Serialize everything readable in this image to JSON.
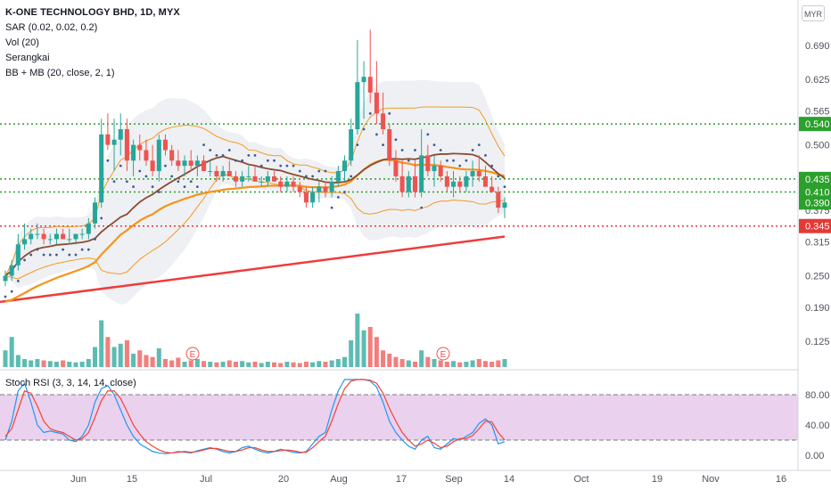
{
  "header": {
    "title": "K-ONE TECHNOLOGY BHD, 1D, MYX",
    "indicators": [
      "SAR (0.02, 0.02, 0.2)",
      "Vol (20)",
      "Serangkai",
      "BB + MB (20, close, 2, 1)"
    ],
    "currency_button": "MYR"
  },
  "rsi_pane": {
    "label": "Stoch RSI (3, 3, 14, 14, close)"
  },
  "colors": {
    "up": "#26a69a",
    "down": "#ef5350",
    "bb": "#f59a23",
    "ma_brown": "#8b4c32",
    "ma_orange": "#f7931a",
    "ma_red": "#ef3b3b",
    "sar": "#3d5a99",
    "green_level": "#2ca02c",
    "red_level": "#e53935",
    "rsi_k": "#2196f3",
    "rsi_d": "#f44336",
    "rsi_band": "#e1bee7"
  },
  "chart_data": [
    {
      "type": "candlestick",
      "title": "K-ONE TECHNOLOGY BHD, 1D, MYX",
      "y_axis_ticks": [
        "0.690",
        "0.625",
        "0.565",
        "0.500",
        "0.435",
        "0.375",
        "0.315",
        "0.250",
        "0.190",
        "0.125"
      ],
      "x_axis_ticks": [
        "Jun",
        "15",
        "Jul",
        "20",
        "Aug",
        "17",
        "Sep",
        "14",
        "Oct",
        "19",
        "Nov",
        "16"
      ],
      "price_labels": [
        {
          "value": "0.540",
          "kind": "green"
        },
        {
          "value": "0.435",
          "kind": "green"
        },
        {
          "value": "0.410",
          "kind": "green"
        },
        {
          "value": "0.390",
          "kind": "green"
        },
        {
          "value": "0.345",
          "kind": "red"
        }
      ],
      "level_lines": [
        {
          "y": 0.54,
          "kind": "green"
        },
        {
          "y": 0.435,
          "kind": "green"
        },
        {
          "y": 0.41,
          "kind": "green"
        },
        {
          "y": 0.345,
          "kind": "red"
        }
      ],
      "earnings_markers": [
        "E",
        "E"
      ],
      "ma_slow_red": {
        "start": 0.2,
        "end": 0.325
      },
      "candles": [
        [
          0.24,
          0.26,
          0.23,
          0.25
        ],
        [
          0.25,
          0.28,
          0.24,
          0.27
        ],
        [
          0.27,
          0.33,
          0.26,
          0.31
        ],
        [
          0.31,
          0.35,
          0.3,
          0.32
        ],
        [
          0.32,
          0.34,
          0.31,
          0.33
        ],
        [
          0.33,
          0.35,
          0.32,
          0.33
        ],
        [
          0.33,
          0.34,
          0.31,
          0.32
        ],
        [
          0.32,
          0.33,
          0.31,
          0.32
        ],
        [
          0.32,
          0.34,
          0.31,
          0.33
        ],
        [
          0.33,
          0.34,
          0.32,
          0.32
        ],
        [
          0.32,
          0.34,
          0.31,
          0.32
        ],
        [
          0.32,
          0.33,
          0.31,
          0.33
        ],
        [
          0.33,
          0.34,
          0.32,
          0.33
        ],
        [
          0.33,
          0.36,
          0.32,
          0.35
        ],
        [
          0.35,
          0.4,
          0.34,
          0.39
        ],
        [
          0.39,
          0.55,
          0.38,
          0.52
        ],
        [
          0.52,
          0.56,
          0.49,
          0.5
        ],
        [
          0.5,
          0.55,
          0.45,
          0.51
        ],
        [
          0.51,
          0.56,
          0.48,
          0.53
        ],
        [
          0.53,
          0.55,
          0.45,
          0.47
        ],
        [
          0.47,
          0.51,
          0.44,
          0.5
        ],
        [
          0.5,
          0.52,
          0.47,
          0.49
        ],
        [
          0.49,
          0.51,
          0.46,
          0.47
        ],
        [
          0.47,
          0.5,
          0.44,
          0.45
        ],
        [
          0.45,
          0.52,
          0.43,
          0.51
        ],
        [
          0.51,
          0.52,
          0.48,
          0.49
        ],
        [
          0.49,
          0.5,
          0.46,
          0.47
        ],
        [
          0.47,
          0.49,
          0.45,
          0.46
        ],
        [
          0.46,
          0.48,
          0.44,
          0.47
        ],
        [
          0.47,
          0.49,
          0.45,
          0.46
        ],
        [
          0.46,
          0.48,
          0.44,
          0.47
        ],
        [
          0.47,
          0.48,
          0.45,
          0.45
        ],
        [
          0.45,
          0.47,
          0.44,
          0.45
        ],
        [
          0.45,
          0.46,
          0.43,
          0.44
        ],
        [
          0.44,
          0.46,
          0.43,
          0.45
        ],
        [
          0.45,
          0.47,
          0.44,
          0.44
        ],
        [
          0.44,
          0.45,
          0.42,
          0.43
        ],
        [
          0.43,
          0.45,
          0.42,
          0.44
        ],
        [
          0.44,
          0.46,
          0.43,
          0.44
        ],
        [
          0.44,
          0.46,
          0.43,
          0.43
        ],
        [
          0.43,
          0.44,
          0.42,
          0.43
        ],
        [
          0.43,
          0.45,
          0.42,
          0.44
        ],
        [
          0.44,
          0.45,
          0.43,
          0.43
        ],
        [
          0.43,
          0.44,
          0.41,
          0.42
        ],
        [
          0.42,
          0.44,
          0.41,
          0.43
        ],
        [
          0.43,
          0.44,
          0.41,
          0.42
        ],
        [
          0.42,
          0.43,
          0.4,
          0.41
        ],
        [
          0.41,
          0.42,
          0.38,
          0.39
        ],
        [
          0.39,
          0.42,
          0.38,
          0.41
        ],
        [
          0.41,
          0.43,
          0.39,
          0.42
        ],
        [
          0.42,
          0.43,
          0.4,
          0.41
        ],
        [
          0.41,
          0.44,
          0.4,
          0.43
        ],
        [
          0.43,
          0.46,
          0.42,
          0.45
        ],
        [
          0.45,
          0.48,
          0.43,
          0.47
        ],
        [
          0.47,
          0.55,
          0.46,
          0.53
        ],
        [
          0.53,
          0.7,
          0.52,
          0.62
        ],
        [
          0.62,
          0.66,
          0.55,
          0.63
        ],
        [
          0.63,
          0.72,
          0.58,
          0.6
        ],
        [
          0.6,
          0.66,
          0.54,
          0.56
        ],
        [
          0.56,
          0.6,
          0.52,
          0.53
        ],
        [
          0.53,
          0.54,
          0.46,
          0.47
        ],
        [
          0.47,
          0.49,
          0.43,
          0.44
        ],
        [
          0.44,
          0.47,
          0.4,
          0.41
        ],
        [
          0.41,
          0.45,
          0.4,
          0.44
        ],
        [
          0.44,
          0.47,
          0.4,
          0.41
        ],
        [
          0.41,
          0.53,
          0.4,
          0.48
        ],
        [
          0.48,
          0.5,
          0.44,
          0.45
        ],
        [
          0.45,
          0.48,
          0.42,
          0.46
        ],
        [
          0.46,
          0.47,
          0.43,
          0.44
        ],
        [
          0.44,
          0.45,
          0.41,
          0.42
        ],
        [
          0.42,
          0.45,
          0.4,
          0.43
        ],
        [
          0.43,
          0.44,
          0.41,
          0.42
        ],
        [
          0.42,
          0.45,
          0.41,
          0.44
        ],
        [
          0.44,
          0.47,
          0.42,
          0.45
        ],
        [
          0.45,
          0.48,
          0.43,
          0.44
        ],
        [
          0.44,
          0.46,
          0.42,
          0.42
        ],
        [
          0.42,
          0.44,
          0.41,
          0.41
        ],
        [
          0.41,
          0.42,
          0.37,
          0.38
        ],
        [
          0.38,
          0.4,
          0.36,
          0.39
        ]
      ],
      "volume": [
        0.25,
        0.45,
        0.18,
        0.12,
        0.1,
        0.12,
        0.1,
        0.09,
        0.08,
        0.1,
        0.08,
        0.07,
        0.08,
        0.12,
        0.3,
        0.7,
        0.45,
        0.3,
        0.35,
        0.4,
        0.2,
        0.25,
        0.18,
        0.15,
        0.28,
        0.12,
        0.1,
        0.14,
        0.08,
        0.1,
        0.12,
        0.09,
        0.08,
        0.07,
        0.08,
        0.1,
        0.08,
        0.09,
        0.07,
        0.08,
        0.06,
        0.08,
        0.07,
        0.06,
        0.08,
        0.07,
        0.06,
        0.08,
        0.07,
        0.09,
        0.08,
        0.1,
        0.12,
        0.15,
        0.4,
        0.8,
        0.55,
        0.6,
        0.45,
        0.25,
        0.2,
        0.15,
        0.12,
        0.1,
        0.08,
        0.25,
        0.15,
        0.12,
        0.1,
        0.08,
        0.09,
        0.07,
        0.08,
        0.1,
        0.12,
        0.09,
        0.08,
        0.1,
        0.12
      ]
    },
    {
      "type": "line",
      "title": "Stoch RSI (3, 3, 14, 14, close)",
      "y_axis_ticks": [
        "80.00",
        "40.00",
        "0.00"
      ],
      "band": [
        20,
        80
      ],
      "series": [
        {
          "values": [
            20,
            45,
            85,
            95,
            70,
            40,
            30,
            32,
            30,
            28,
            20,
            18,
            25,
            40,
            70,
            88,
            92,
            80,
            60,
            40,
            25,
            15,
            10,
            5,
            3,
            2,
            3,
            5,
            4,
            3,
            6,
            8,
            10,
            8,
            5,
            3,
            5,
            10,
            12,
            8,
            5,
            3,
            5,
            8,
            6,
            4,
            3,
            5,
            15,
            25,
            30,
            60,
            85,
            100,
            100,
            100,
            100,
            98,
            90,
            70,
            45,
            30,
            20,
            12,
            8,
            20,
            25,
            10,
            8,
            15,
            22,
            20,
            25,
            30,
            42,
            48,
            40,
            15,
            18
          ]
        },
        {
          "values": [
            25,
            35,
            60,
            85,
            82,
            65,
            45,
            35,
            32,
            30,
            25,
            20,
            22,
            30,
            50,
            72,
            85,
            85,
            75,
            58,
            40,
            28,
            18,
            12,
            7,
            4,
            3,
            4,
            5,
            4,
            5,
            7,
            9,
            9,
            7,
            5,
            5,
            7,
            10,
            10,
            7,
            5,
            5,
            6,
            7,
            6,
            4,
            4,
            10,
            18,
            25,
            45,
            68,
            88,
            98,
            100,
            100,
            99,
            95,
            82,
            62,
            45,
            30,
            20,
            12,
            15,
            20,
            16,
            10,
            12,
            18,
            22,
            22,
            26,
            35,
            45,
            44,
            30,
            20
          ]
        }
      ]
    }
  ]
}
